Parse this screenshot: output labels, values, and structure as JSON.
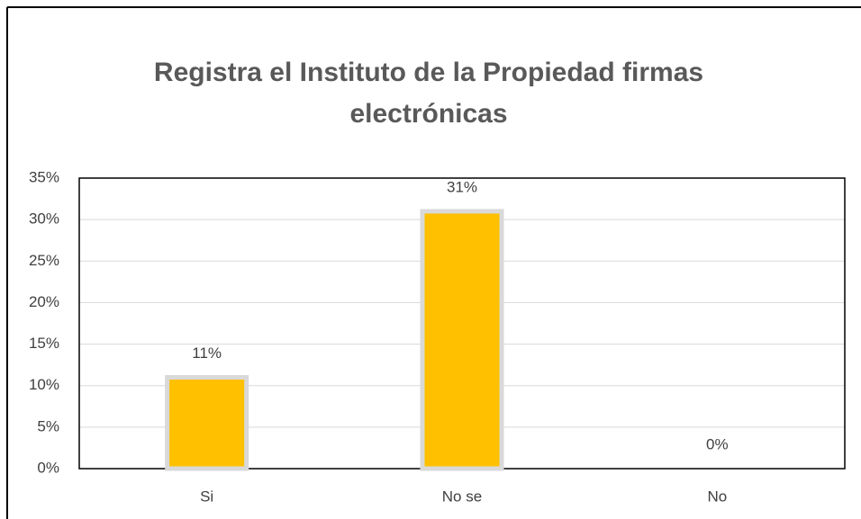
{
  "chart_data": {
    "type": "bar",
    "title": "Registra el Instituto de la Propiedad firmas electrónicas",
    "categories": [
      "Si",
      "No se",
      "No"
    ],
    "values": [
      11,
      31,
      0
    ],
    "value_labels": [
      "11%",
      "31%",
      "0%"
    ],
    "color": "#ffc000",
    "ylim": [
      0,
      35
    ],
    "yticks": [
      {
        "value": 0,
        "label": "0%"
      },
      {
        "value": 5,
        "label": "5%"
      },
      {
        "value": 10,
        "label": "10%"
      },
      {
        "value": 15,
        "label": "15%"
      },
      {
        "value": 20,
        "label": "20%"
      },
      {
        "value": 25,
        "label": "25%"
      },
      {
        "value": 30,
        "label": "30%"
      },
      {
        "value": 35,
        "label": "35%"
      }
    ],
    "grid": true
  }
}
